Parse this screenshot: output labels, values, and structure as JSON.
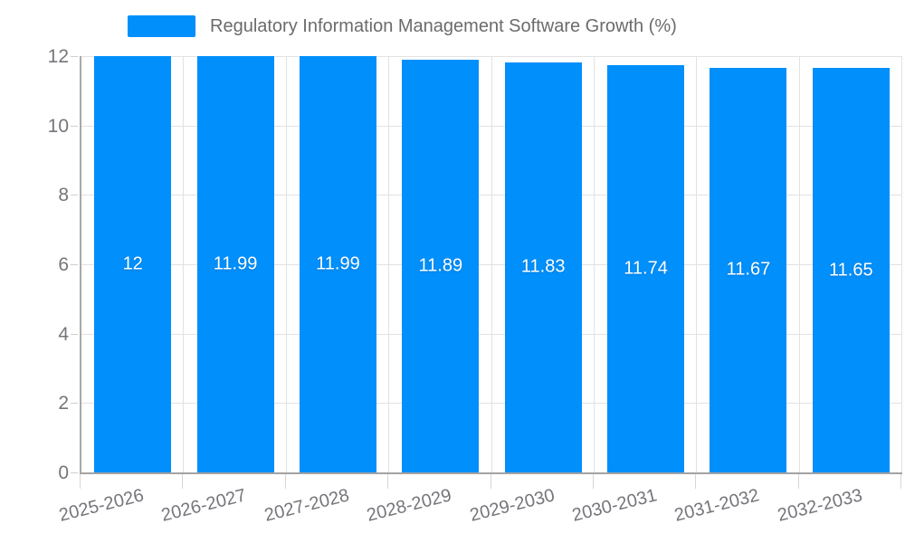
{
  "chart_data": {
    "type": "bar",
    "title": "Regulatory Information Management Software Growth (%)",
    "categories": [
      "2025-2026",
      "2026-2027",
      "2027-2028",
      "2028-2029",
      "2029-2030",
      "2030-2031",
      "2031-2032",
      "2032-2033"
    ],
    "series": [
      {
        "name": "Regulatory Information Management Software Growth (%)",
        "values": [
          12,
          11.99,
          11.99,
          11.89,
          11.83,
          11.74,
          11.67,
          11.65
        ],
        "data_labels": [
          "12",
          "11.99",
          "11.99",
          "11.89",
          "11.83",
          "11.74",
          "11.67",
          "11.65"
        ]
      }
    ],
    "xlabel": "",
    "ylabel": "",
    "ylim": [
      0,
      12
    ],
    "yticks": [
      "0",
      "2",
      "4",
      "6",
      "8",
      "10",
      "12"
    ],
    "ytick_values": [
      0,
      2,
      4,
      6,
      8,
      10,
      12
    ],
    "grid": "on",
    "legend_position": "top",
    "colors": {
      "bar": "#008FFB",
      "grid": "#e2e2e2",
      "axis": "#a3a3a3",
      "tick_label": "#75767b",
      "legend_text": "#6b6b6b",
      "data_label": "#ffffff",
      "background": "#ffffff"
    },
    "x_label_rotation_deg": -14
  }
}
